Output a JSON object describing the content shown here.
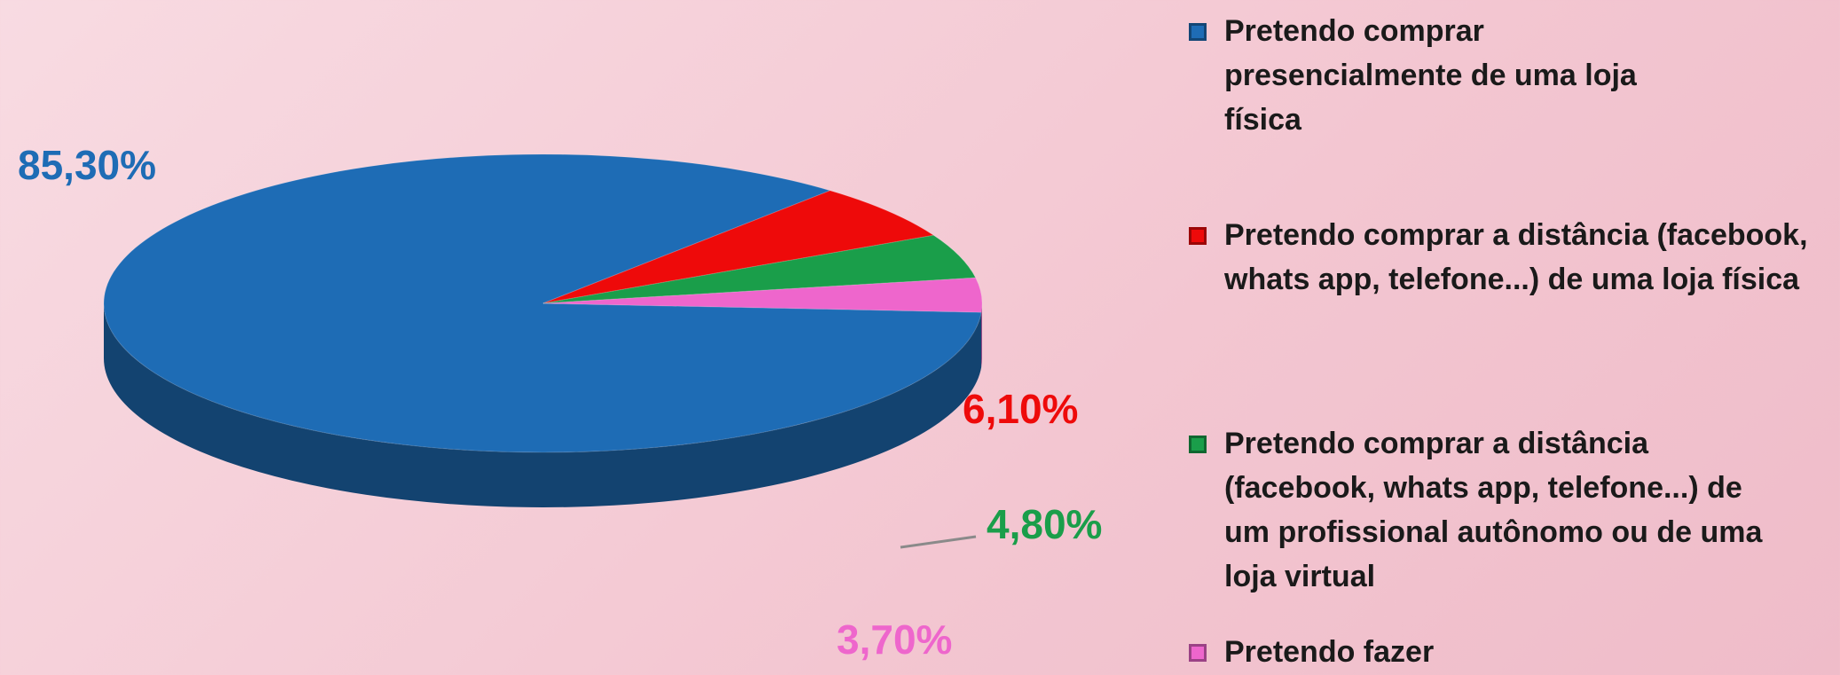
{
  "chart_data": {
    "type": "pie",
    "categories": [
      "Pretendo comprar presencialmente de uma loja física",
      "Pretendo comprar a distância (facebook, whats app, telefone...) de uma loja física",
      "Pretendo comprar a distância (facebook, whats app, telefone...) de um profissional autônomo ou de uma loja virtual",
      "Pretendo fazer"
    ],
    "values": [
      85.3,
      6.1,
      4.8,
      3.7
    ],
    "value_labels": [
      "85,30%",
      "6,10%",
      "4,80%",
      "3,70%"
    ],
    "colors": [
      "#1e6cb5",
      "#ee0a0a",
      "#1a9e4a",
      "#ee66cc"
    ]
  }
}
